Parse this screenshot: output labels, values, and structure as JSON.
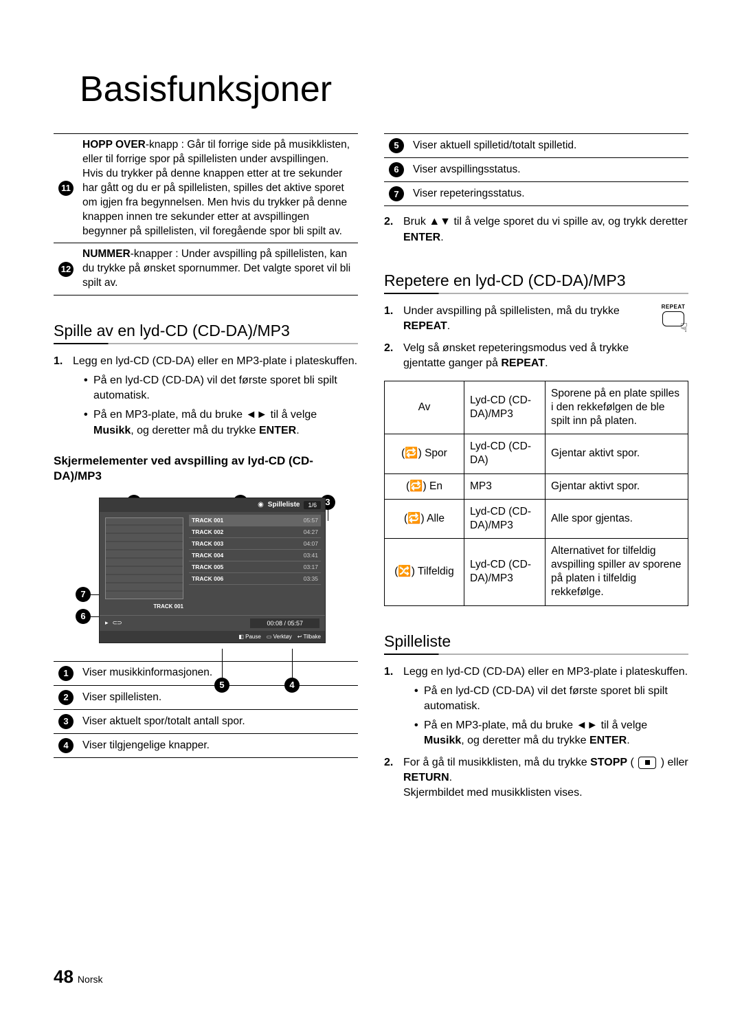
{
  "page": {
    "title": "Basisfunksjoner",
    "number": "48",
    "lang": "Norsk"
  },
  "left": {
    "featRows": [
      {
        "n": "11",
        "html": "<b>HOPP OVER</b>-knapp : Går til forrige side på musikklisten, eller til forrige spor på spillelisten under avspillingen.<br>Hvis du trykker på denne knappen etter at tre sekunder har gått og du er på spillelisten, spilles det aktive sporet om igjen fra begynnelsen. Men hvis du trykker på denne knappen innen tre sekunder etter at avspillingen begynner på spillelisten, vil foregående spor bli spilt av."
      },
      {
        "n": "12",
        "html": "<b>NUMMER</b>-knapper : Under avspilling på spillelisten, kan du trykke på ønsket spornummer. Det valgte sporet vil bli spilt av."
      }
    ],
    "sectionA": {
      "title": "Spille av en lyd-CD (CD-DA)/MP3",
      "step1": "Legg en lyd-CD (CD-DA) eller en MP3-plate i plateskuffen.",
      "b1": "På en lyd-CD (CD-DA) vil det første sporet bli spilt automatisk.",
      "b2_pre": "På en MP3-plate, må du bruke ◄► til å velge ",
      "b2_mid": "Musikk",
      "b2_post": ", og deretter må du trykke ",
      "b2_end": "ENTER",
      "subH": "Skjermelementer ved avspilling av lyd-CD (CD-DA)/MP3"
    },
    "player": {
      "hdrTitle": "Spilleliste",
      "hdrCount": "1/6",
      "coverLabel": "TRACK 001",
      "tracks": [
        {
          "name": "TRACK 001",
          "dur": "05:57",
          "sel": true
        },
        {
          "name": "TRACK 002",
          "dur": "04:27",
          "sel": false
        },
        {
          "name": "TRACK 003",
          "dur": "04:07",
          "sel": false
        },
        {
          "name": "TRACK 004",
          "dur": "03:41",
          "sel": false
        },
        {
          "name": "TRACK 005",
          "dur": "03:17",
          "sel": false
        },
        {
          "name": "TRACK 006",
          "dur": "03:35",
          "sel": false
        }
      ],
      "statusTime": "00:08 / 05:57",
      "ftr": [
        "◧ Pause",
        "▭ Verktøy",
        "↩ Tilbake"
      ]
    },
    "legend": [
      {
        "n": "1",
        "t": "Viser musikkinformasjonen."
      },
      {
        "n": "2",
        "t": "Viser spillelisten."
      },
      {
        "n": "3",
        "t": "Viser aktuelt spor/totalt antall spor."
      },
      {
        "n": "4",
        "t": "Viser tilgjengelige knapper."
      }
    ]
  },
  "right": {
    "legend": [
      {
        "n": "5",
        "t": "Viser aktuell spilletid/totalt spilletid."
      },
      {
        "n": "6",
        "t": "Viser avspillingsstatus."
      },
      {
        "n": "7",
        "t": "Viser repeteringsstatus."
      }
    ],
    "step2_pre": "Bruk ▲▼ til å velge sporet du vi spille av, og trykk deretter ",
    "step2_end": "ENTER",
    "sectionB": {
      "title": "Repetere en lyd-CD (CD-DA)/MP3",
      "s1_pre": "Under avspilling på spillelisten, må du trykke ",
      "s1_end": "REPEAT",
      "s2_pre": "Velg så ønsket repeteringsmodus ved å trykke gjentatte ganger på ",
      "s2_end": "REPEAT",
      "repeatBtnLabel": "REPEAT"
    },
    "modes": [
      {
        "c1": "Av",
        "c2": "Lyd-CD (CD-DA)/MP3",
        "c3": "Sporene på en plate spilles i den rekkefølgen de ble spilt inn på platen."
      },
      {
        "c1": "(🔁) Spor",
        "c2": "Lyd-CD (CD-DA)",
        "c3": "Gjentar aktivt spor."
      },
      {
        "c1": "(🔁) En",
        "c2": "MP3",
        "c3": "Gjentar aktivt spor."
      },
      {
        "c1": "(🔁) Alle",
        "c2": "Lyd-CD (CD-DA)/MP3",
        "c3": "Alle spor gjentas."
      },
      {
        "c1": "(🔀) Tilfeldig",
        "c2": "Lyd-CD (CD-DA)/MP3",
        "c3": "Alternativet for tilfeldig avspilling spiller av sporene på platen i tilfeldig rekkefølge."
      }
    ],
    "sectionC": {
      "title": "Spilleliste",
      "s1": "Legg en lyd-CD (CD-DA) eller en MP3-plate i plateskuffen.",
      "b1": "På en lyd-CD (CD-DA) vil det første sporet bli spilt automatisk.",
      "b2_pre": "På en MP3-plate, må du bruke ◄► til å velge ",
      "b2_mid": "Musikk",
      "b2_post": ", og deretter må du trykke ",
      "b2_end": "ENTER",
      "s2_pre": "For å gå til musikklisten, må du trykke ",
      "s2_b1": "STOPP",
      "s2_mid": " ( ",
      "s2_post": " ) eller ",
      "s2_b2": "RETURN",
      "s2_tail": "Skjermbildet med musikklisten vises."
    }
  }
}
